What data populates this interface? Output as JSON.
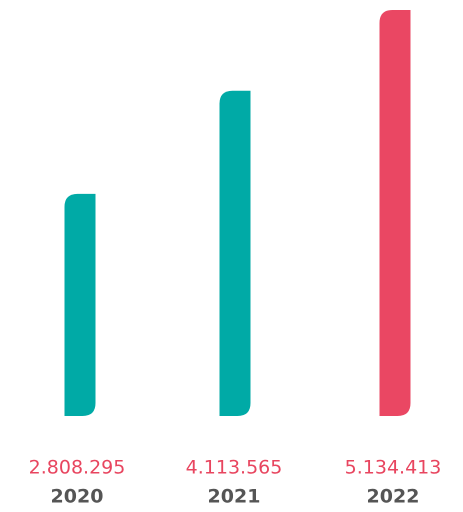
{
  "chart_data": {
    "type": "bar",
    "categories": [
      "2020",
      "2021",
      "2022"
    ],
    "values": [
      2808295,
      4113565,
      5134413
    ],
    "value_labels": [
      "2.808.295",
      "4.113.565",
      "5.134.413"
    ],
    "colors": [
      "#00aaa6",
      "#00aaa6",
      "#ea4763"
    ]
  }
}
